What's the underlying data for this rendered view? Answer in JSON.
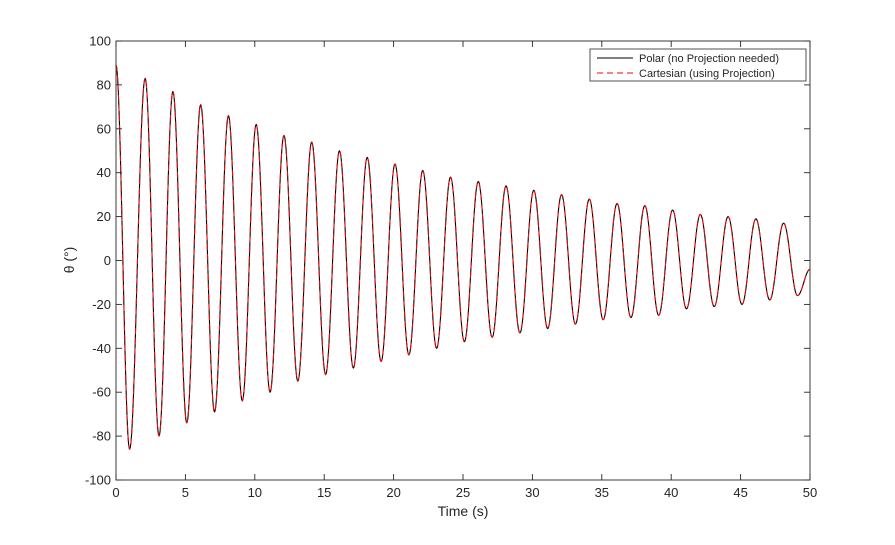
{
  "chart_data": {
    "type": "line",
    "title": "",
    "xlabel": "Time (s)",
    "ylabel": "θ  (°)",
    "xlim": [
      0,
      50
    ],
    "ylim": [
      -100,
      100
    ],
    "xticks": [
      0,
      5,
      10,
      15,
      20,
      25,
      30,
      35,
      40,
      45,
      50
    ],
    "yticks": [
      -100,
      -80,
      -60,
      -40,
      -20,
      0,
      20,
      40,
      60,
      80,
      100
    ],
    "xtick_labels": [
      "0",
      "5",
      "10",
      "15",
      "20",
      "25",
      "30",
      "35",
      "40",
      "45",
      "50"
    ],
    "ytick_labels": [
      "-100",
      "-80",
      "-60",
      "-40",
      "-20",
      "0",
      "20",
      "40",
      "60",
      "80",
      "100"
    ],
    "grid": false,
    "legend_position": "top-right",
    "series": [
      {
        "name": "Polar (no Projection needed)",
        "color": "#000000",
        "style": "solid",
        "points": [
          [
            0,
            89
          ],
          [
            0.98,
            -86
          ],
          [
            2.1,
            83
          ],
          [
            3.1,
            -80
          ],
          [
            4.1,
            77
          ],
          [
            5.1,
            -74
          ],
          [
            6.1,
            71
          ],
          [
            7.1,
            -69
          ],
          [
            8.1,
            66
          ],
          [
            9.1,
            -64
          ],
          [
            10.1,
            62
          ],
          [
            11.1,
            -60
          ],
          [
            12.1,
            57
          ],
          [
            13.1,
            -55
          ],
          [
            14.1,
            54
          ],
          [
            15.1,
            -52
          ],
          [
            16.1,
            50
          ],
          [
            17.1,
            -49
          ],
          [
            18.1,
            47
          ],
          [
            19.1,
            -46
          ],
          [
            20.1,
            44
          ],
          [
            21.1,
            -43
          ],
          [
            22.1,
            41
          ],
          [
            23.1,
            -40
          ],
          [
            24.1,
            38
          ],
          [
            25.1,
            -37
          ],
          [
            26.1,
            36
          ],
          [
            27.1,
            -35
          ],
          [
            28.1,
            34
          ],
          [
            29.1,
            -33
          ],
          [
            30.1,
            32
          ],
          [
            31.1,
            -31
          ],
          [
            32.1,
            30
          ],
          [
            33.1,
            -29
          ],
          [
            34.1,
            28
          ],
          [
            35.1,
            -27
          ],
          [
            36.1,
            26
          ],
          [
            37.1,
            -26
          ],
          [
            38.1,
            25
          ],
          [
            39.1,
            -25
          ],
          [
            40.1,
            23
          ],
          [
            41.1,
            -22
          ],
          [
            42.1,
            21
          ],
          [
            43.1,
            -21
          ],
          [
            44.1,
            20
          ],
          [
            45.1,
            -20
          ],
          [
            46.1,
            19
          ],
          [
            47.1,
            -18
          ],
          [
            48.1,
            17
          ],
          [
            49.1,
            -16
          ],
          [
            50,
            -4
          ]
        ]
      },
      {
        "name": "Cartesian (using Projection)",
        "color": "#ff0000",
        "style": "dashed",
        "points": [
          [
            0,
            89
          ],
          [
            0.98,
            -86
          ],
          [
            2.1,
            83
          ],
          [
            3.1,
            -80
          ],
          [
            4.1,
            77
          ],
          [
            5.1,
            -74
          ],
          [
            6.1,
            71
          ],
          [
            7.1,
            -69
          ],
          [
            8.1,
            66
          ],
          [
            9.1,
            -64
          ],
          [
            10.1,
            62
          ],
          [
            11.1,
            -60
          ],
          [
            12.1,
            57
          ],
          [
            13.1,
            -55
          ],
          [
            14.1,
            54
          ],
          [
            15.1,
            -52
          ],
          [
            16.1,
            50
          ],
          [
            17.1,
            -49
          ],
          [
            18.1,
            47
          ],
          [
            19.1,
            -46
          ],
          [
            20.1,
            44
          ],
          [
            21.1,
            -43
          ],
          [
            22.1,
            41
          ],
          [
            23.1,
            -40
          ],
          [
            24.1,
            38
          ],
          [
            25.1,
            -37
          ],
          [
            26.1,
            36
          ],
          [
            27.1,
            -35
          ],
          [
            28.1,
            34
          ],
          [
            29.1,
            -33
          ],
          [
            30.1,
            32
          ],
          [
            31.1,
            -31
          ],
          [
            32.1,
            30
          ],
          [
            33.1,
            -29
          ],
          [
            34.1,
            28
          ],
          [
            35.1,
            -27
          ],
          [
            36.1,
            26
          ],
          [
            37.1,
            -26
          ],
          [
            38.1,
            25
          ],
          [
            39.1,
            -25
          ],
          [
            40.1,
            23
          ],
          [
            41.1,
            -22
          ],
          [
            42.1,
            21
          ],
          [
            43.1,
            -21
          ],
          [
            44.1,
            20
          ],
          [
            45.1,
            -20
          ],
          [
            46.1,
            19
          ],
          [
            47.1,
            -18
          ],
          [
            48.1,
            17
          ],
          [
            49.1,
            -16
          ],
          [
            50,
            -4
          ]
        ]
      }
    ]
  }
}
